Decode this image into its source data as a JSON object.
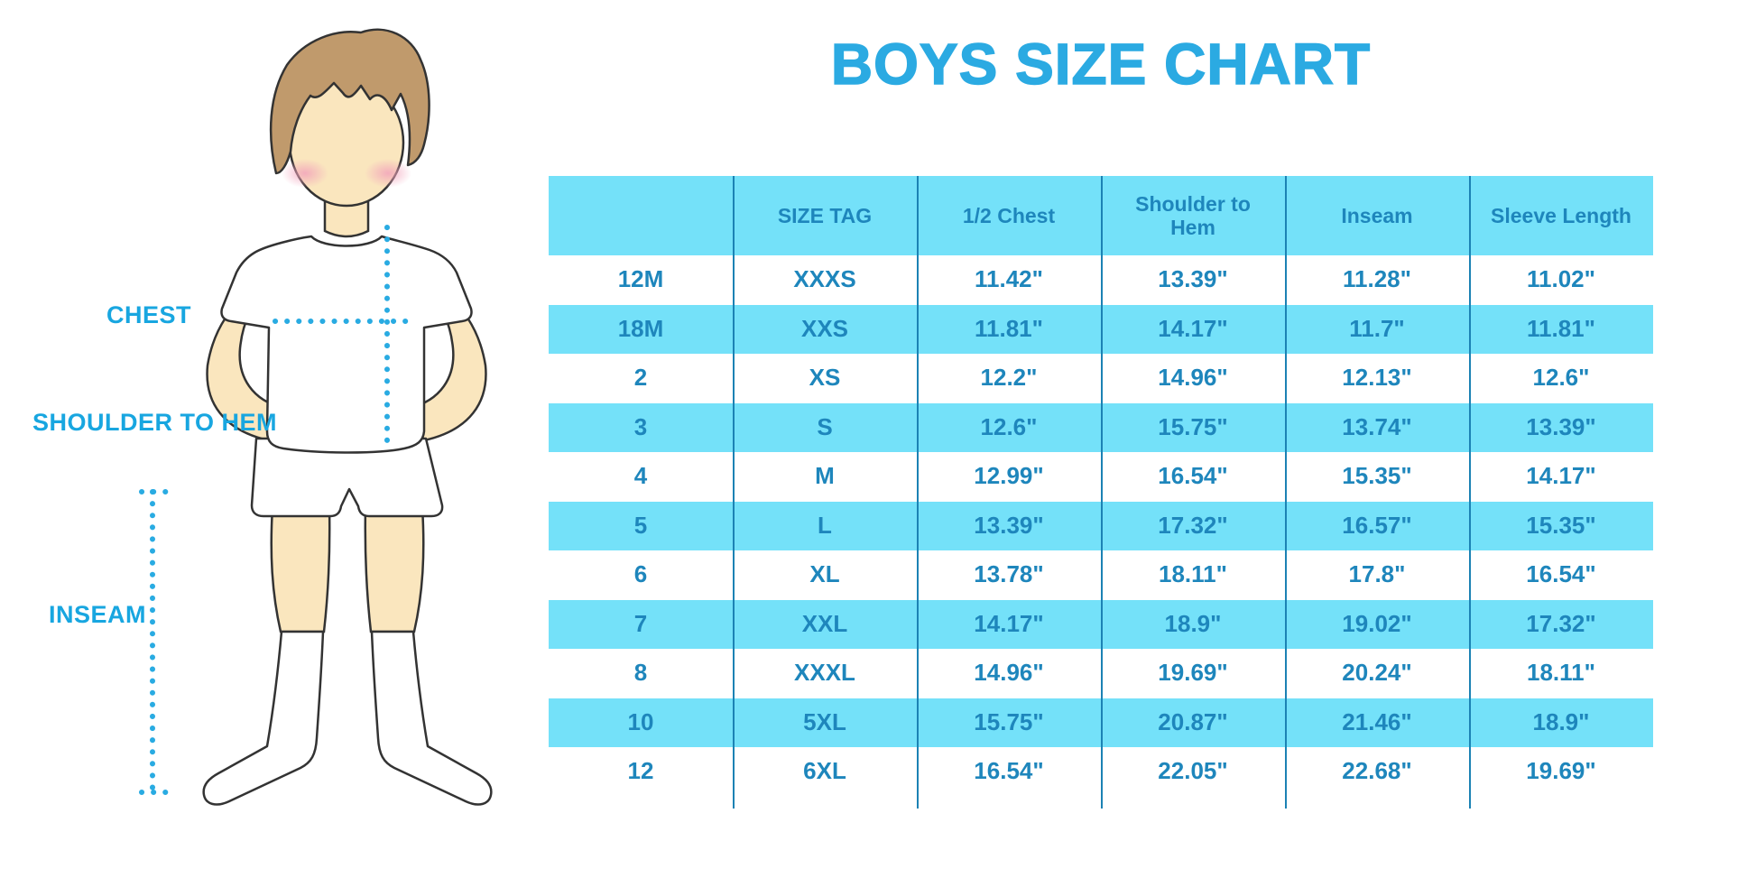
{
  "title": "BOYS SIZE CHART",
  "labels": {
    "chest": "CHEST",
    "shoulder_to_hem": "SHOULDER TO HEM",
    "inseam": "INSEAM"
  },
  "colors": {
    "accent_blue": "#2BAAE2",
    "label_blue": "#18A6E0",
    "stripe_cyan": "#74E1F9",
    "table_text": "#1E86BC",
    "grid_line": "#1C82B4",
    "dotted_line": "#29ABE2",
    "skin": "#FAE6BE",
    "hair": "#C09A6C"
  },
  "chart_data": {
    "type": "table",
    "title": "BOYS SIZE CHART",
    "columns": [
      "",
      "SIZE TAG",
      "1/2 Chest",
      "Shoulder to Hem",
      "Inseam",
      "Sleeve Length"
    ],
    "rows": [
      [
        "12M",
        "XXXS",
        "11.42\"",
        "13.39\"",
        "11.28\"",
        "11.02\""
      ],
      [
        "18M",
        "XXS",
        "11.81\"",
        "14.17\"",
        "11.7\"",
        "11.81\""
      ],
      [
        "2",
        "XS",
        "12.2\"",
        "14.96\"",
        "12.13\"",
        "12.6\""
      ],
      [
        "3",
        "S",
        "12.6\"",
        "15.75\"",
        "13.74\"",
        "13.39\""
      ],
      [
        "4",
        "M",
        "12.99\"",
        "16.54\"",
        "15.35\"",
        "14.17\""
      ],
      [
        "5",
        "L",
        "13.39\"",
        "17.32\"",
        "16.57\"",
        "15.35\""
      ],
      [
        "6",
        "XL",
        "13.78\"",
        "18.11\"",
        "17.8\"",
        "16.54\""
      ],
      [
        "7",
        "XXL",
        "14.17\"",
        "18.9\"",
        "19.02\"",
        "17.32\""
      ],
      [
        "8",
        "XXXL",
        "14.96\"",
        "19.69\"",
        "20.24\"",
        "18.11\""
      ],
      [
        "10",
        "5XL",
        "15.75\"",
        "20.87\"",
        "21.46\"",
        "18.9\""
      ],
      [
        "12",
        "6XL",
        "16.54\"",
        "22.05\"",
        "22.68\"",
        "19.69\""
      ]
    ],
    "legend_position": "none",
    "grid": "column-separators-only",
    "stripe_pattern": "header cyan, body rows alternate white/cyan starting white"
  }
}
